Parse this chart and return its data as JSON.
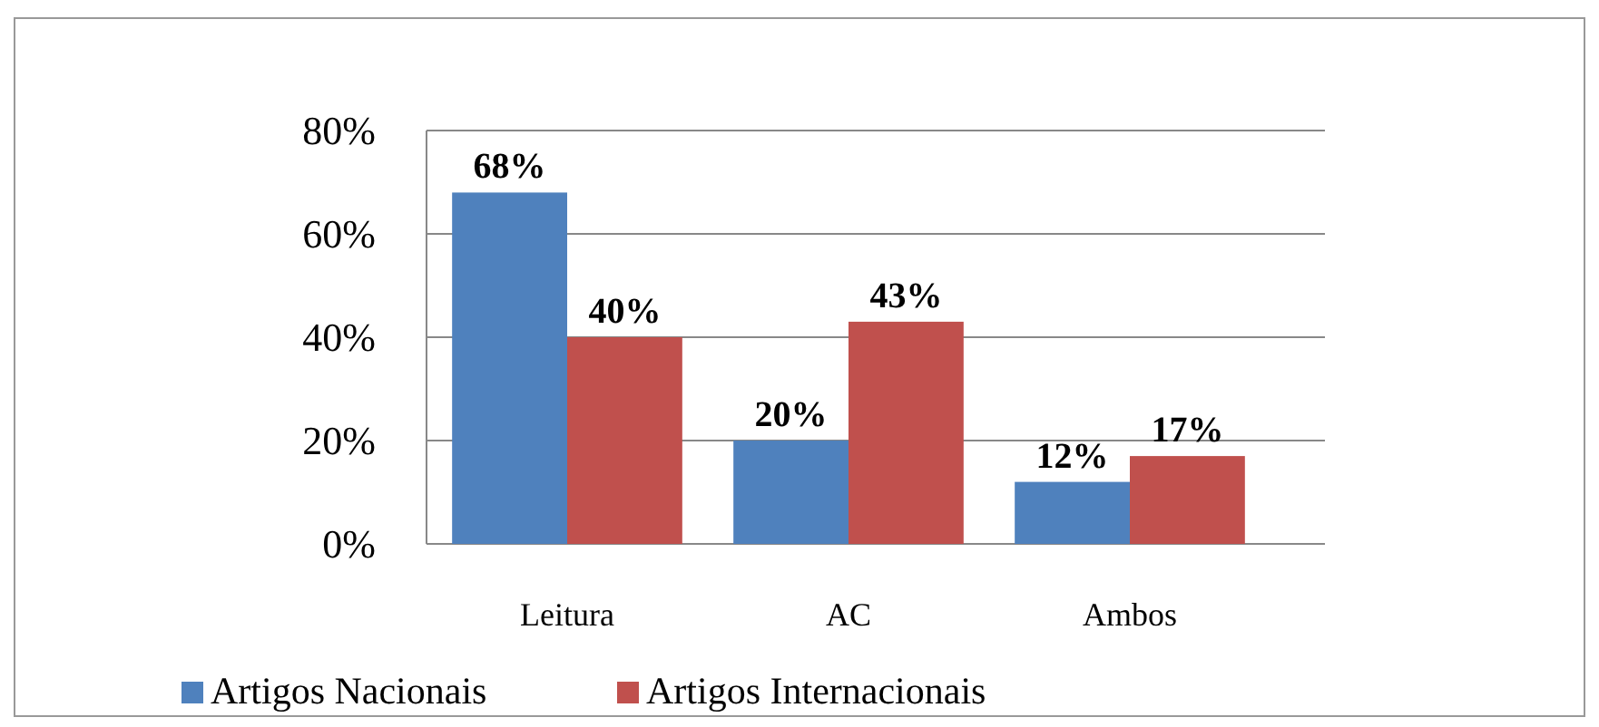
{
  "chart_data": {
    "type": "bar",
    "categories": [
      "Leitura",
      "AC",
      "Ambos"
    ],
    "series": [
      {
        "name": "Artigos Nacionais",
        "color": "#4f81bd",
        "values": [
          68,
          20,
          12
        ],
        "value_labels": [
          "68%",
          "20%",
          "12%"
        ]
      },
      {
        "name": "Artigos Internacionais",
        "color": "#c0504d",
        "values": [
          40,
          43,
          17
        ],
        "value_labels": [
          "40%",
          "43%",
          "17%"
        ]
      }
    ],
    "ylim": [
      0,
      80
    ],
    "yticks": [
      {
        "value": 0,
        "label": "0%"
      },
      {
        "value": 20,
        "label": "20%"
      },
      {
        "value": 40,
        "label": "40%"
      },
      {
        "value": 60,
        "label": "60%"
      },
      {
        "value": 80,
        "label": "80%"
      }
    ],
    "grid": "y",
    "legend": "bottom"
  }
}
